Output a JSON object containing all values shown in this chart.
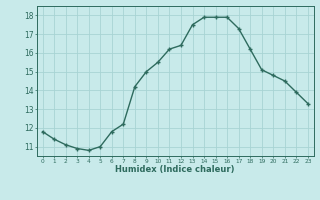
{
  "x": [
    0,
    1,
    2,
    3,
    4,
    5,
    6,
    7,
    8,
    9,
    10,
    11,
    12,
    13,
    14,
    15,
    16,
    17,
    18,
    19,
    20,
    21,
    22,
    23
  ],
  "y": [
    11.8,
    11.4,
    11.1,
    10.9,
    10.8,
    11.0,
    11.8,
    12.2,
    14.2,
    15.0,
    15.5,
    16.2,
    16.4,
    17.5,
    17.9,
    17.9,
    17.9,
    17.3,
    16.2,
    15.1,
    14.8,
    14.5,
    13.9,
    13.3
  ],
  "xlabel": "Humidex (Indice chaleur)",
  "ylabel": "",
  "ylim": [
    10.5,
    18.5
  ],
  "xlim": [
    -0.5,
    23.5
  ],
  "yticks": [
    11,
    12,
    13,
    14,
    15,
    16,
    17,
    18
  ],
  "xticks": [
    0,
    1,
    2,
    3,
    4,
    5,
    6,
    7,
    8,
    9,
    10,
    11,
    12,
    13,
    14,
    15,
    16,
    17,
    18,
    19,
    20,
    21,
    22,
    23
  ],
  "line_color": "#2e6b5e",
  "marker_color": "#2e6b5e",
  "bg_color": "#c8eaea",
  "grid_color": "#a8d4d4",
  "label_color": "#2e6b5e",
  "tick_color": "#2e6b5e"
}
